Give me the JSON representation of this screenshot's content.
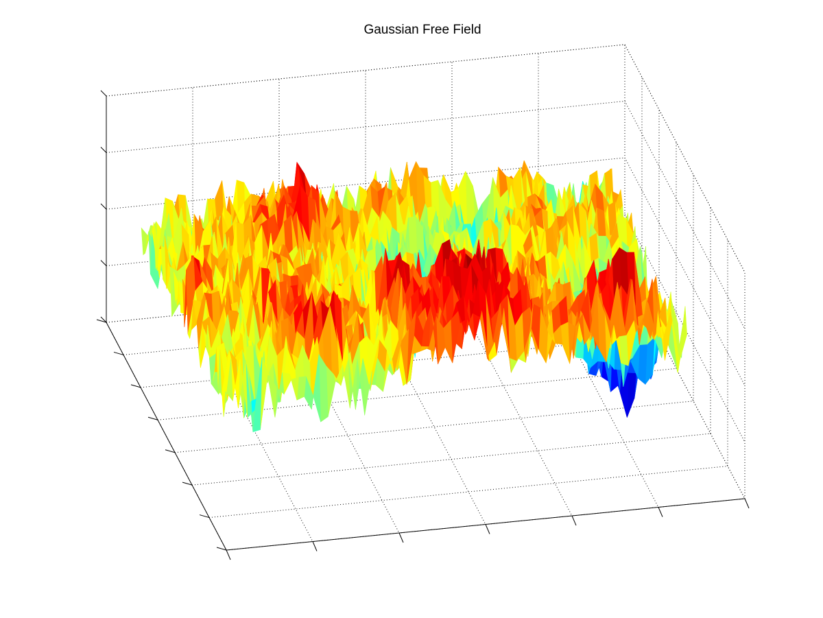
{
  "chart_data": {
    "type": "surface",
    "title": "Gaussian Free Field",
    "xlabel": "",
    "ylabel": "",
    "zlabel": "",
    "grid": true,
    "grid_rows": 48,
    "grid_cols": 64,
    "z_range": [
      -1,
      1
    ],
    "colormap": "jet",
    "colormap_stops": [
      "#00008f",
      "#0000ff",
      "#00ffff",
      "#ffff00",
      "#ff0000",
      "#800000"
    ],
    "x_tick_count": 7,
    "y_tick_count": 8,
    "z_tick_count": 5,
    "tick_labels_visible": false,
    "random_seed": 7,
    "field_description": "Random rough surface resembling a discrete Gaussian free field; values mostly between mid-cyan and red, with scattered deep blue troughs and red peaks."
  }
}
